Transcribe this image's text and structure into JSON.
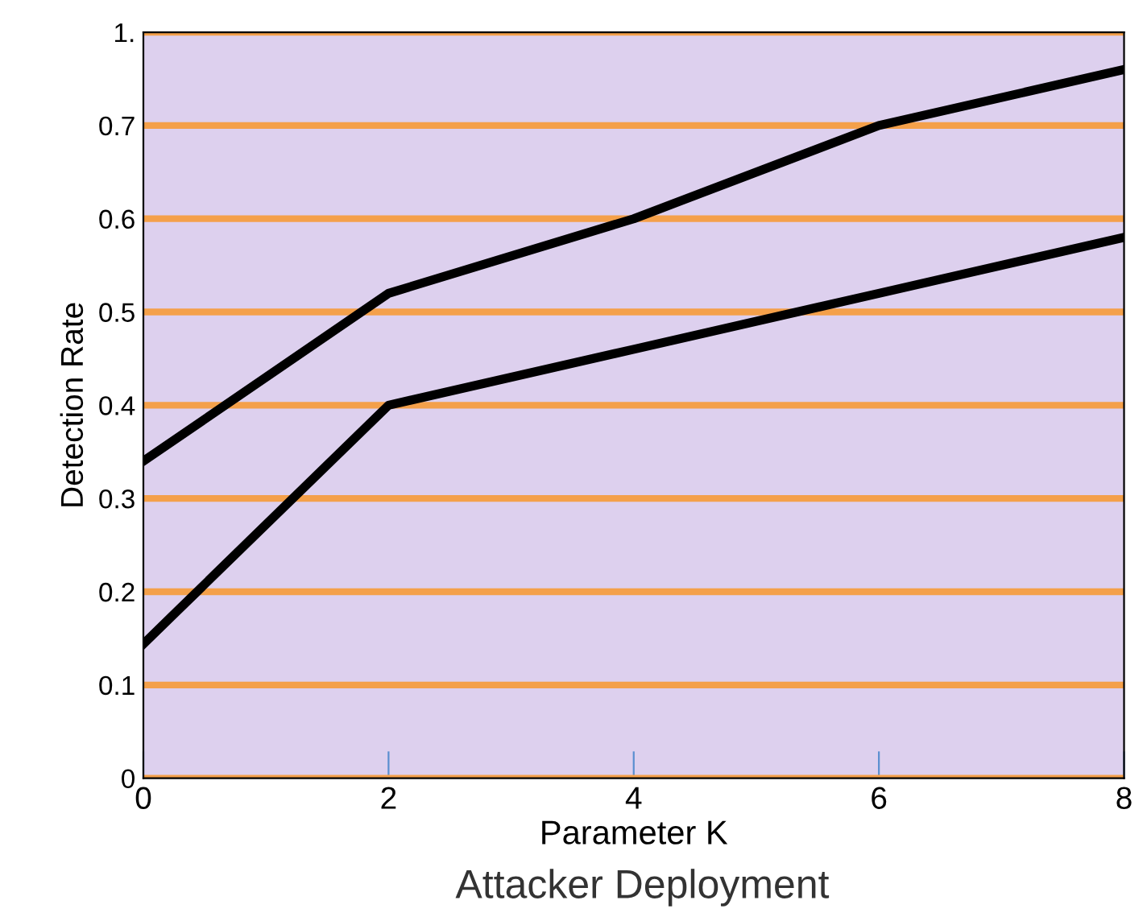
{
  "chart_data": {
    "type": "line",
    "xlabel": "Parameter K",
    "ylabel": "Detection Rate",
    "annotations": [
      "Attacker Deployment"
    ],
    "x": [
      0,
      2,
      4,
      6,
      8
    ],
    "series": [
      {
        "color": "#000000",
        "values": [
          0.34,
          0.52,
          0.6,
          0.7,
          0.76
        ]
      },
      {
        "color": "#000000",
        "values": [
          0.144,
          0.4,
          0.46,
          0.52,
          0.58
        ]
      }
    ],
    "xlim": [
      0,
      8
    ],
    "ylim": [
      0,
      0.8
    ],
    "xticks": [
      0,
      2,
      4,
      6,
      8
    ],
    "yticks": [
      0,
      0.1,
      0.2,
      0.3,
      0.4,
      0.5,
      0.6,
      0.7,
      {
        "value": 0.8,
        "label": "1."
      }
    ],
    "grid": "y",
    "legend": false,
    "marker": "none",
    "line_style": "solid"
  }
}
